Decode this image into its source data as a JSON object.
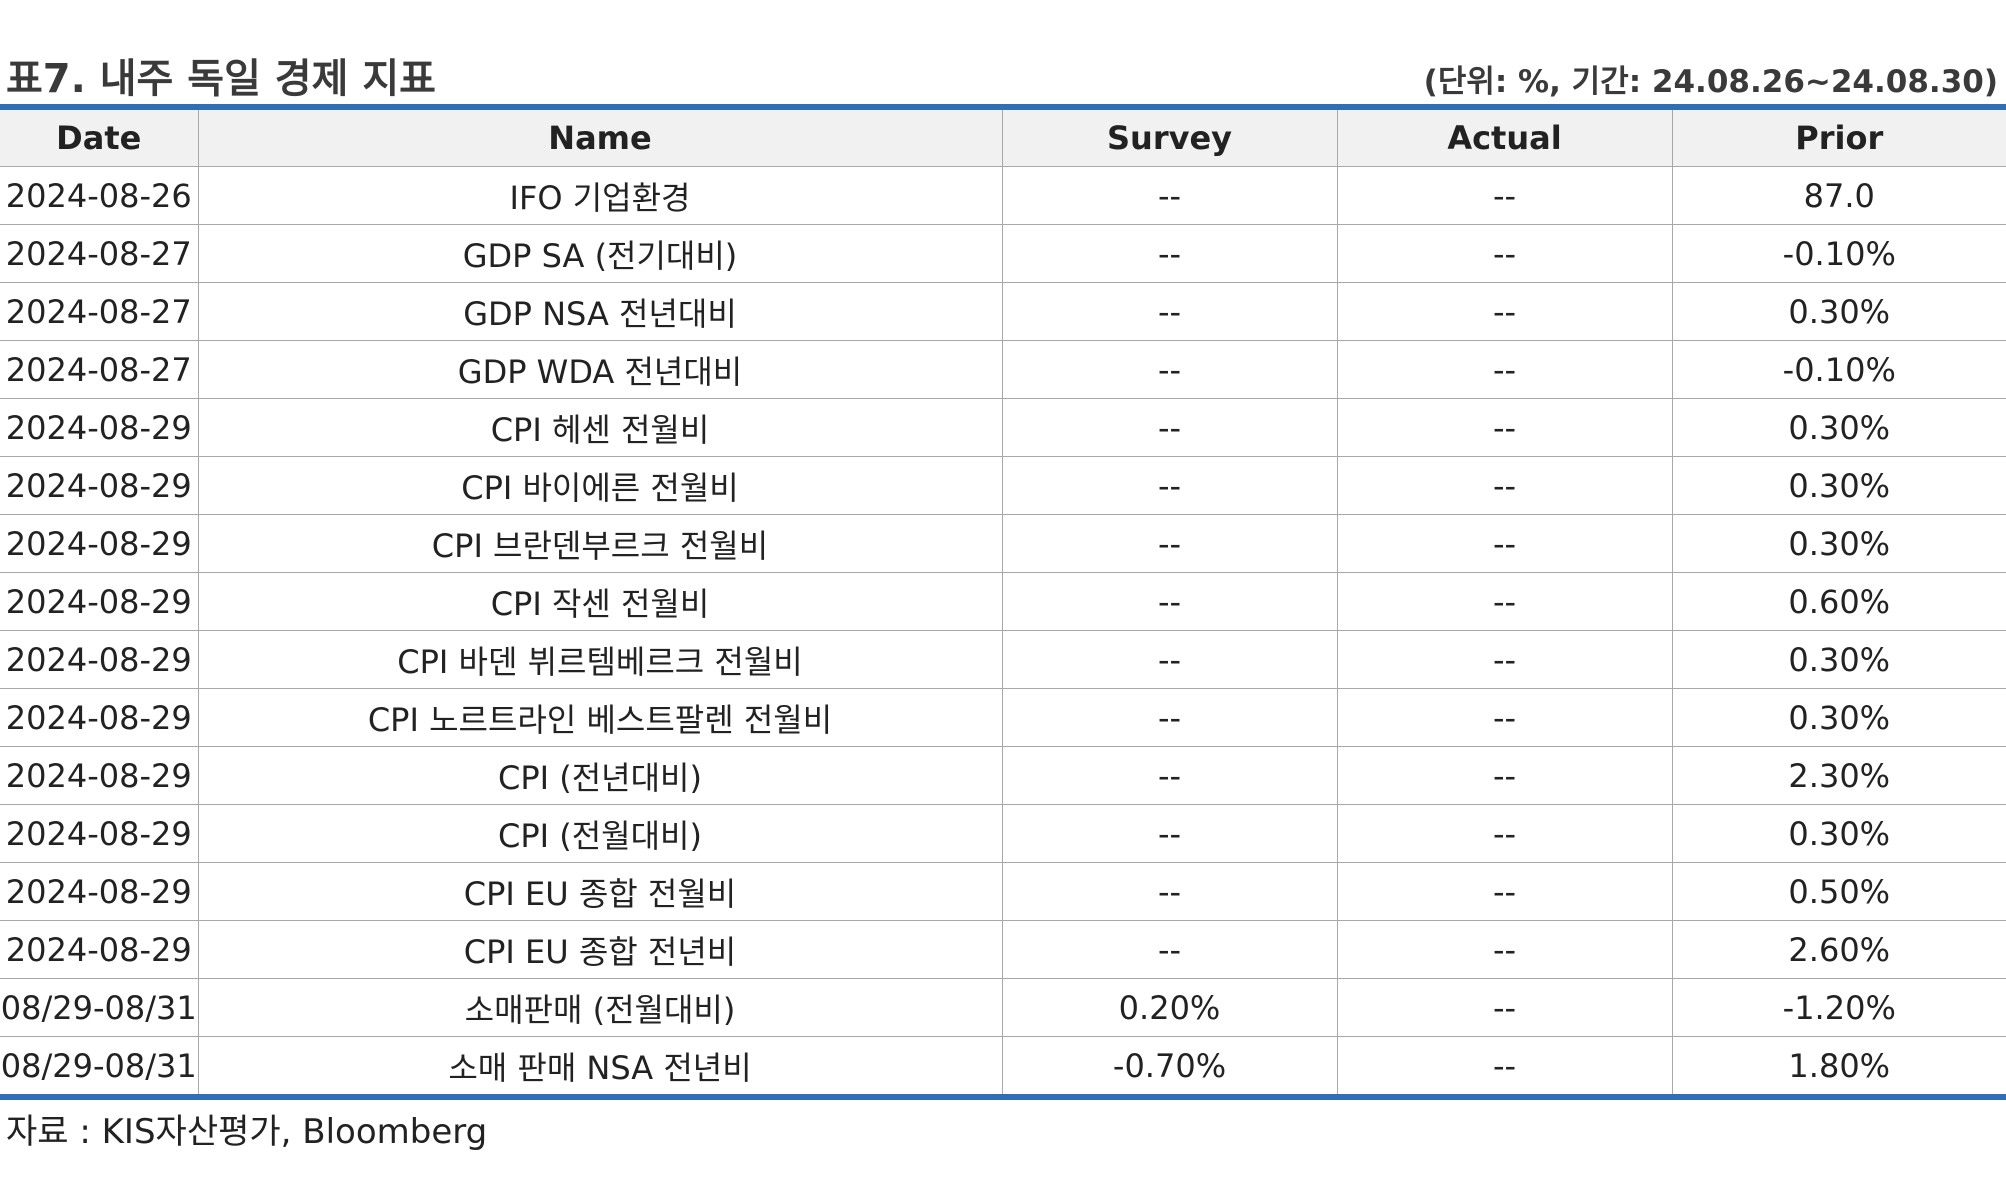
{
  "header": {
    "title": "표7. 내주 독일 경제 지표",
    "unit_note": "(단위: %, 기간: 24.08.26~24.08.30)"
  },
  "table": {
    "columns": [
      "Date",
      "Name",
      "Survey",
      "Actual",
      "Prior"
    ],
    "rows": [
      [
        "2024-08-26",
        "IFO 기업환경",
        "--",
        "--",
        "87.0"
      ],
      [
        "2024-08-27",
        "GDP SA (전기대비)",
        "--",
        "--",
        "-0.10%"
      ],
      [
        "2024-08-27",
        "GDP NSA 전년대비",
        "--",
        "--",
        "0.30%"
      ],
      [
        "2024-08-27",
        "GDP WDA 전년대비",
        "--",
        "--",
        "-0.10%"
      ],
      [
        "2024-08-29",
        "CPI 헤센 전월비",
        "--",
        "--",
        "0.30%"
      ],
      [
        "2024-08-29",
        "CPI 바이에른 전월비",
        "--",
        "--",
        "0.30%"
      ],
      [
        "2024-08-29",
        "CPI 브란덴부르크 전월비",
        "--",
        "--",
        "0.30%"
      ],
      [
        "2024-08-29",
        "CPI 작센 전월비",
        "--",
        "--",
        "0.60%"
      ],
      [
        "2024-08-29",
        "CPI 바덴 뷔르템베르크 전월비",
        "--",
        "--",
        "0.30%"
      ],
      [
        "2024-08-29",
        "CPI 노르트라인 베스트팔렌 전월비",
        "--",
        "--",
        "0.30%"
      ],
      [
        "2024-08-29",
        "CPI (전년대비)",
        "--",
        "--",
        "2.30%"
      ],
      [
        "2024-08-29",
        "CPI (전월대비)",
        "--",
        "--",
        "0.30%"
      ],
      [
        "2024-08-29",
        "CPI EU 종합 전월비",
        "--",
        "--",
        "0.50%"
      ],
      [
        "2024-08-29",
        "CPI EU 종합 전년비",
        "--",
        "--",
        "2.60%"
      ],
      [
        "08/29-08/31",
        "소매판매 (전월대비)",
        "0.20%",
        "--",
        "-1.20%"
      ],
      [
        "08/29-08/31",
        "소매 판매 NSA 전년비",
        "-0.70%",
        "--",
        "1.80%"
      ]
    ]
  },
  "footer": {
    "source": "자료 : KIS자산평가, Bloomberg"
  },
  "colors": {
    "rule_blue": "#2e6fb5",
    "header_bg": "#f1f1f1",
    "grid": "#a8a8a8"
  }
}
